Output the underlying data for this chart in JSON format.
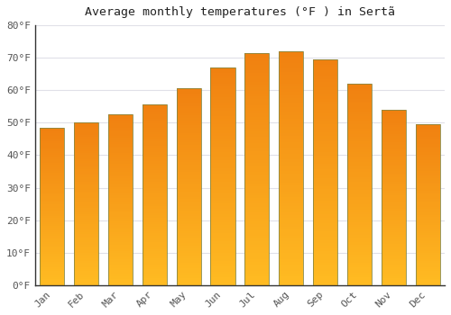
{
  "months": [
    "Jan",
    "Feb",
    "Mar",
    "Apr",
    "May",
    "Jun",
    "Jul",
    "Aug",
    "Sep",
    "Oct",
    "Nov",
    "Dec"
  ],
  "values": [
    48.5,
    50.0,
    52.5,
    55.5,
    60.5,
    67.0,
    71.5,
    72.0,
    69.5,
    62.0,
    54.0,
    49.5
  ],
  "title": "Average monthly temperatures (°F ) in Sertã",
  "ylim": [
    0,
    80
  ],
  "yticks": [
    0,
    10,
    20,
    30,
    40,
    50,
    60,
    70,
    80
  ],
  "background_color": "#ffffff",
  "grid_color": "#e0e0e8",
  "text_color": "#555555",
  "title_color": "#222222",
  "bar_color_bottom": "#FFBB22",
  "bar_color_top": "#F08010",
  "bar_edge_color": "#888844",
  "bar_width": 0.72
}
